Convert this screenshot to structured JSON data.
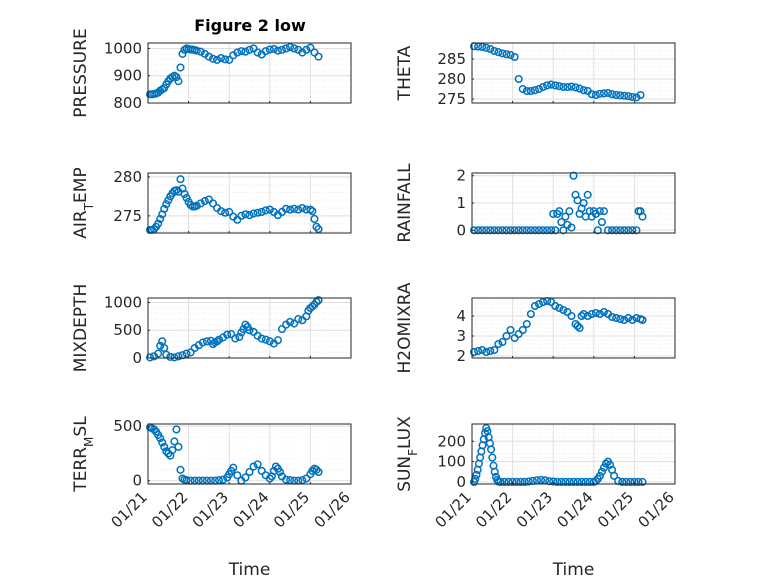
{
  "figure_title": "Figure 2 low",
  "colors": {
    "marker": "#0072BD",
    "axis": "#262626",
    "grid": "#DFDFDF",
    "minor_grid": "#EBEBEB"
  },
  "x_tick_labels": [
    "01/21",
    "01/22",
    "01/23",
    "01/24",
    "01/25",
    "01/26"
  ],
  "x_axis_label": "Time",
  "chart_data": [
    {
      "type": "scatter",
      "title": "Figure 2 low",
      "xlabel": "",
      "ylabel": "PRESSURE",
      "xlim": [
        0,
        5
      ],
      "ylim": [
        800,
        1020
      ],
      "yticks": [
        800,
        900,
        1000
      ],
      "ytick_labels": [
        "800",
        "900",
        "1000"
      ],
      "grid": true,
      "minor_grid": true,
      "x": [
        0.05,
        0.1,
        0.15,
        0.2,
        0.25,
        0.3,
        0.35,
        0.4,
        0.45,
        0.5,
        0.55,
        0.6,
        0.65,
        0.7,
        0.75,
        0.8,
        0.85,
        0.9,
        0.95,
        1.0,
        1.05,
        1.1,
        1.15,
        1.2,
        1.3,
        1.4,
        1.5,
        1.6,
        1.7,
        1.8,
        1.9,
        2.0,
        2.1,
        2.2,
        2.3,
        2.4,
        2.5,
        2.6,
        2.7,
        2.8,
        2.9,
        3.0,
        3.1,
        3.2,
        3.3,
        3.4,
        3.5,
        3.6,
        3.7,
        3.8,
        3.9,
        4.0,
        4.1,
        4.2
      ],
      "y": [
        832,
        832,
        833,
        835,
        838,
        845,
        850,
        855,
        868,
        880,
        890,
        895,
        900,
        895,
        880,
        930,
        980,
        995,
        1000,
        998,
        996,
        996,
        994,
        992,
        988,
        980,
        970,
        962,
        958,
        965,
        960,
        958,
        975,
        985,
        990,
        988,
        995,
        1000,
        985,
        978,
        990,
        996,
        998,
        992,
        995,
        1000,
        1005,
        1000,
        995,
        985,
        995,
        1003,
        985,
        970
      ]
    },
    {
      "type": "scatter",
      "title": "",
      "xlabel": "",
      "ylabel": "THETA",
      "xlim": [
        0,
        5
      ],
      "ylim": [
        274,
        289
      ],
      "yticks": [
        275,
        280,
        285
      ],
      "ytick_labels": [
        "275",
        "280",
        "285"
      ],
      "grid": true,
      "minor_grid": true,
      "x": [
        0.05,
        0.15,
        0.25,
        0.35,
        0.45,
        0.55,
        0.65,
        0.75,
        0.85,
        0.95,
        1.05,
        1.15,
        1.25,
        1.35,
        1.45,
        1.55,
        1.65,
        1.75,
        1.85,
        1.95,
        2.05,
        2.15,
        2.25,
        2.35,
        2.45,
        2.55,
        2.65,
        2.75,
        2.85,
        2.95,
        3.05,
        3.15,
        3.25,
        3.35,
        3.45,
        3.55,
        3.65,
        3.75,
        3.85,
        3.95,
        4.05,
        4.15
      ],
      "y": [
        288.2,
        288.1,
        288,
        287.8,
        287.5,
        287,
        286.7,
        286.4,
        286.2,
        286,
        285.5,
        280,
        277.5,
        277,
        277,
        277.2,
        277.5,
        278,
        278.4,
        278.6,
        278.4,
        278.2,
        278,
        278,
        278.1,
        277.9,
        277.6,
        277.2,
        277,
        276.2,
        276,
        276.3,
        276.4,
        276.5,
        276.2,
        276,
        275.9,
        275.8,
        275.7,
        275.5,
        275.4,
        276
      ]
    },
    {
      "type": "scatter",
      "title": "",
      "xlabel": "",
      "ylabel": "AIR_TEMP",
      "xlim": [
        0,
        5
      ],
      "ylim": [
        272.8,
        280.5
      ],
      "yticks": [
        275,
        280
      ],
      "ytick_labels": [
        "275",
        "280"
      ],
      "grid": true,
      "minor_grid": true,
      "x": [
        0.05,
        0.1,
        0.15,
        0.2,
        0.25,
        0.3,
        0.35,
        0.4,
        0.45,
        0.5,
        0.55,
        0.6,
        0.65,
        0.7,
        0.75,
        0.8,
        0.85,
        0.9,
        0.95,
        1.0,
        1.05,
        1.1,
        1.15,
        1.2,
        1.3,
        1.4,
        1.5,
        1.6,
        1.7,
        1.8,
        1.9,
        2.0,
        2.1,
        2.2,
        2.3,
        2.4,
        2.5,
        2.6,
        2.7,
        2.8,
        2.9,
        3.0,
        3.1,
        3.2,
        3.3,
        3.4,
        3.5,
        3.6,
        3.7,
        3.8,
        3.9,
        4.0,
        4.05,
        4.1,
        4.15,
        4.2
      ],
      "y": [
        273.2,
        273.2,
        273.3,
        273.6,
        274,
        274.6,
        275.2,
        275.9,
        276.5,
        277,
        277.5,
        277.9,
        278.2,
        278.3,
        278.1,
        279.7,
        278.5,
        277.8,
        277.3,
        276.8,
        276.4,
        276.2,
        276.2,
        276.3,
        276.6,
        276.9,
        277.1,
        276.6,
        276,
        275.6,
        275.4,
        275.5,
        274.9,
        274.5,
        275,
        275.2,
        275.1,
        275.3,
        275.4,
        275.5,
        275.7,
        275.8,
        275.5,
        275.1,
        275.5,
        275.9,
        275.8,
        275.9,
        275.8,
        276,
        275.8,
        275.8,
        275.6,
        274.6,
        273.6,
        273.3
      ]
    },
    {
      "type": "scatter",
      "title": "",
      "xlabel": "",
      "ylabel": "RAINFALL",
      "xlim": [
        0,
        5
      ],
      "ylim": [
        -0.1,
        2.1
      ],
      "yticks": [
        0,
        1,
        2
      ],
      "ytick_labels": [
        "0",
        "1",
        "2"
      ],
      "grid": true,
      "minor_grid": true,
      "x": [
        0.05,
        0.15,
        0.25,
        0.35,
        0.45,
        0.55,
        0.65,
        0.75,
        0.85,
        0.95,
        1.05,
        1.15,
        1.25,
        1.35,
        1.45,
        1.55,
        1.65,
        1.75,
        1.85,
        1.95,
        2.0,
        2.05,
        2.1,
        2.15,
        2.2,
        2.25,
        2.3,
        2.35,
        2.4,
        2.45,
        2.5,
        2.55,
        2.6,
        2.65,
        2.7,
        2.75,
        2.8,
        2.85,
        2.9,
        2.95,
        3.0,
        3.05,
        3.1,
        3.15,
        3.2,
        3.25,
        3.35,
        3.45,
        3.55,
        3.65,
        3.75,
        3.85,
        3.95,
        4.05,
        4.1,
        4.15,
        4.2
      ],
      "y": [
        0,
        0,
        0,
        0,
        0,
        0,
        0,
        0,
        0,
        0,
        0,
        0,
        0,
        0,
        0,
        0,
        0,
        0,
        0,
        0,
        0.6,
        0,
        0.6,
        0.7,
        0.3,
        0,
        0.5,
        0.2,
        0.7,
        0.1,
        2.0,
        1.3,
        1.1,
        0.6,
        0.8,
        1.0,
        0.5,
        1.3,
        0.7,
        0.5,
        0.7,
        0.6,
        0,
        0.7,
        0.3,
        0.7,
        0,
        0,
        0,
        0,
        0,
        0,
        0,
        0,
        0.7,
        0.7,
        0.5
      ]
    },
    {
      "type": "scatter",
      "title": "",
      "xlabel": "",
      "ylabel": "MIXDEPTH",
      "xlim": [
        0,
        5
      ],
      "ylim": [
        0,
        1080
      ],
      "yticks": [
        0,
        500,
        1000
      ],
      "ytick_labels": [
        "0",
        "500",
        "1000"
      ],
      "grid": true,
      "minor_grid": true,
      "x": [
        0.05,
        0.15,
        0.25,
        0.3,
        0.35,
        0.4,
        0.45,
        0.55,
        0.65,
        0.75,
        0.85,
        0.95,
        1.05,
        1.15,
        1.25,
        1.35,
        1.45,
        1.55,
        1.6,
        1.65,
        1.7,
        1.75,
        1.85,
        1.95,
        2.05,
        2.15,
        2.25,
        2.3,
        2.35,
        2.4,
        2.45,
        2.5,
        2.6,
        2.7,
        2.8,
        2.9,
        3.0,
        3.1,
        3.2,
        3.3,
        3.4,
        3.5,
        3.6,
        3.7,
        3.8,
        3.9,
        3.95,
        4.0,
        4.05,
        4.1,
        4.15,
        4.2
      ],
      "y": [
        10,
        30,
        80,
        220,
        300,
        180,
        60,
        20,
        10,
        30,
        50,
        80,
        100,
        180,
        230,
        280,
        300,
        310,
        250,
        280,
        300,
        330,
        370,
        420,
        430,
        350,
        380,
        460,
        520,
        600,
        560,
        500,
        470,
        400,
        350,
        330,
        300,
        260,
        320,
        520,
        600,
        650,
        620,
        700,
        680,
        750,
        850,
        900,
        930,
        960,
        1010,
        1040
      ]
    },
    {
      "type": "scatter",
      "title": "",
      "xlabel": "",
      "ylabel": "H2OMIXRA",
      "xlim": [
        0,
        5
      ],
      "ylim": [
        1.9,
        4.9
      ],
      "yticks": [
        2,
        3,
        4
      ],
      "ytick_labels": [
        "2",
        "3",
        "4"
      ],
      "grid": true,
      "minor_grid": true,
      "x": [
        0.05,
        0.15,
        0.25,
        0.35,
        0.45,
        0.55,
        0.65,
        0.75,
        0.85,
        0.95,
        1.05,
        1.15,
        1.25,
        1.35,
        1.45,
        1.55,
        1.65,
        1.75,
        1.85,
        1.95,
        2.05,
        2.15,
        2.25,
        2.35,
        2.45,
        2.55,
        2.6,
        2.65,
        2.7,
        2.75,
        2.85,
        2.95,
        3.05,
        3.15,
        3.25,
        3.35,
        3.45,
        3.55,
        3.65,
        3.75,
        3.85,
        3.95,
        4.05,
        4.15,
        4.2
      ],
      "y": [
        2.2,
        2.25,
        2.3,
        2.2,
        2.25,
        2.3,
        2.6,
        2.7,
        3.0,
        3.3,
        2.9,
        3.1,
        3.3,
        3.6,
        4.1,
        4.5,
        4.6,
        4.7,
        4.75,
        4.7,
        4.5,
        4.4,
        4.3,
        4.2,
        4.0,
        3.6,
        3.5,
        3.4,
        4.0,
        4.1,
        4.0,
        4.1,
        4.15,
        4.1,
        4.2,
        4.1,
        3.95,
        3.9,
        3.85,
        3.8,
        3.9,
        3.8,
        3.9,
        3.85,
        3.8
      ]
    },
    {
      "type": "scatter",
      "title": "",
      "xlabel": "Time",
      "ylabel": "TERR_MSL",
      "xlim": [
        0,
        5
      ],
      "ylim": [
        -30,
        520
      ],
      "yticks": [
        0,
        500
      ],
      "ytick_labels": [
        "0",
        "500"
      ],
      "grid": true,
      "minor_grid": true,
      "x": [
        0.05,
        0.1,
        0.15,
        0.2,
        0.25,
        0.3,
        0.35,
        0.4,
        0.45,
        0.5,
        0.55,
        0.6,
        0.65,
        0.7,
        0.75,
        0.8,
        0.85,
        0.9,
        0.95,
        1.05,
        1.15,
        1.25,
        1.35,
        1.45,
        1.55,
        1.65,
        1.75,
        1.85,
        1.95,
        2.0,
        2.05,
        2.1,
        2.2,
        2.3,
        2.4,
        2.5,
        2.6,
        2.7,
        2.8,
        2.9,
        3.0,
        3.05,
        3.1,
        3.15,
        3.2,
        3.25,
        3.3,
        3.4,
        3.5,
        3.6,
        3.7,
        3.8,
        3.9,
        4.0,
        4.05,
        4.1,
        4.15,
        4.2
      ],
      "y": [
        490,
        480,
        470,
        450,
        420,
        390,
        350,
        310,
        270,
        250,
        230,
        280,
        360,
        470,
        310,
        100,
        20,
        10,
        5,
        0,
        0,
        0,
        0,
        0,
        0,
        0,
        5,
        10,
        30,
        60,
        90,
        120,
        50,
        0,
        30,
        80,
        130,
        150,
        90,
        50,
        20,
        40,
        90,
        130,
        110,
        80,
        40,
        10,
        5,
        0,
        0,
        5,
        20,
        60,
        90,
        110,
        100,
        80
      ]
    },
    {
      "type": "scatter",
      "title": "",
      "xlabel": "Time",
      "ylabel": "SUN_FLUX",
      "xlim": [
        0,
        5
      ],
      "ylim": [
        -10,
        285
      ],
      "yticks": [
        0,
        100,
        200
      ],
      "ytick_labels": [
        "0",
        "100",
        "200"
      ],
      "grid": true,
      "minor_grid": true,
      "x": [
        0.05,
        0.08,
        0.11,
        0.14,
        0.17,
        0.2,
        0.23,
        0.26,
        0.29,
        0.32,
        0.35,
        0.38,
        0.41,
        0.44,
        0.47,
        0.5,
        0.53,
        0.56,
        0.59,
        0.62,
        0.65,
        0.7,
        0.8,
        0.9,
        1.0,
        1.1,
        1.2,
        1.3,
        1.4,
        1.5,
        1.6,
        1.7,
        1.8,
        1.9,
        2.0,
        2.1,
        2.2,
        2.3,
        2.4,
        2.5,
        2.6,
        2.7,
        2.8,
        2.9,
        3.0,
        3.05,
        3.1,
        3.15,
        3.2,
        3.25,
        3.3,
        3.35,
        3.4,
        3.45,
        3.5,
        3.6,
        3.7,
        3.8,
        3.9,
        4.0,
        4.1,
        4.2
      ],
      "y": [
        0,
        15,
        35,
        60,
        90,
        120,
        150,
        180,
        210,
        240,
        265,
        250,
        220,
        190,
        160,
        120,
        80,
        50,
        25,
        10,
        2,
        0,
        0,
        0,
        0,
        0,
        0,
        0,
        2,
        5,
        8,
        10,
        8,
        4,
        2,
        0,
        0,
        0,
        0,
        0,
        0,
        0,
        0,
        0,
        0,
        5,
        15,
        30,
        50,
        70,
        90,
        100,
        85,
        60,
        30,
        5,
        0,
        0,
        0,
        0,
        0,
        0
      ]
    }
  ]
}
